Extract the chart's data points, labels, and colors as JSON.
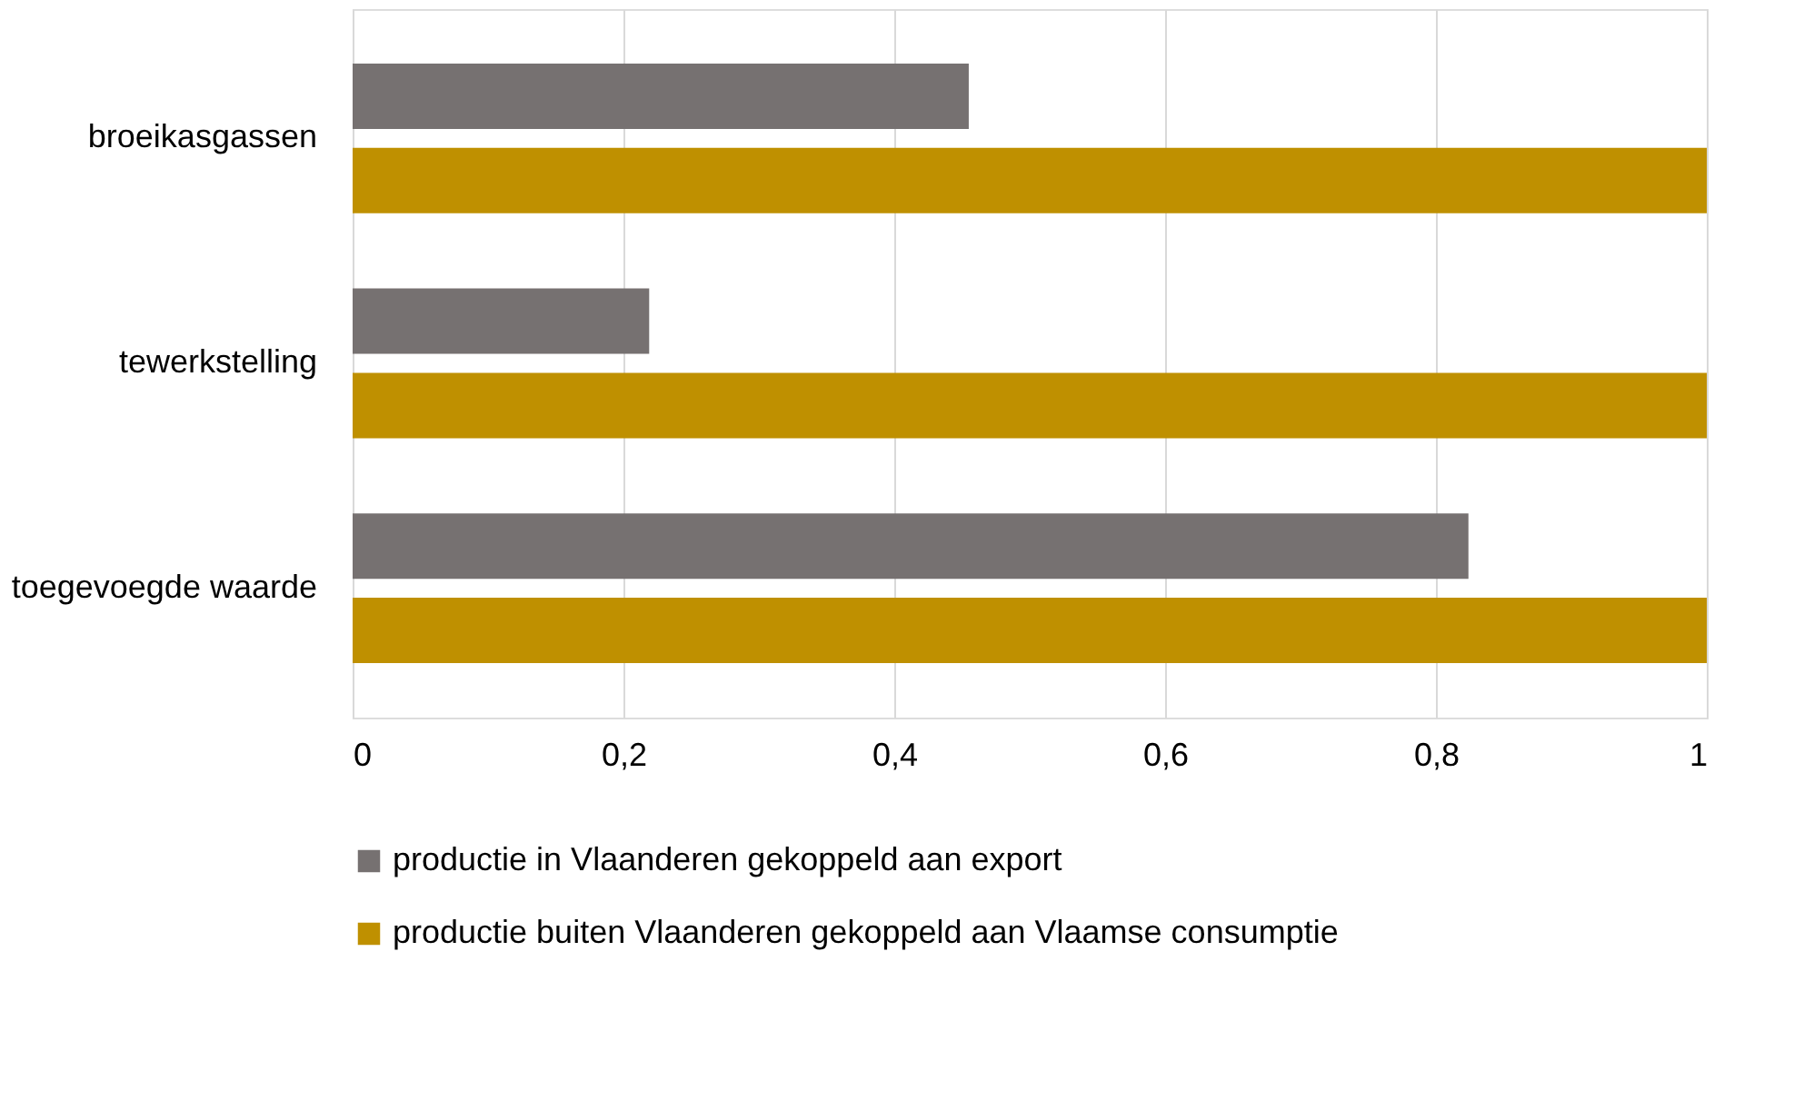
{
  "chart_data": {
    "type": "bar",
    "orientation": "horizontal",
    "categories": [
      "broeikasgassen",
      "tewerkstelling",
      "toegevoegde waarde"
    ],
    "series": [
      {
        "name": "productie in Vlaanderen gekoppeld aan export",
        "color": "#767171",
        "values": [
          0.455,
          0.219,
          0.824
        ]
      },
      {
        "name": "productie buiten Vlaanderen gekoppeld aan Vlaamse consumptie",
        "color": "#bf9000",
        "values": [
          1,
          1,
          1
        ]
      }
    ],
    "xlim": [
      0,
      1
    ],
    "xticks": [
      0,
      {
        "value": 0.2,
        "label": "0,2"
      },
      {
        "value": 0.4,
        "label": "0,4"
      },
      {
        "value": 0.6,
        "label": "0,6"
      },
      {
        "value": 0.8,
        "label": "0,8"
      },
      1
    ],
    "grid": "x",
    "legend": "bottom"
  }
}
